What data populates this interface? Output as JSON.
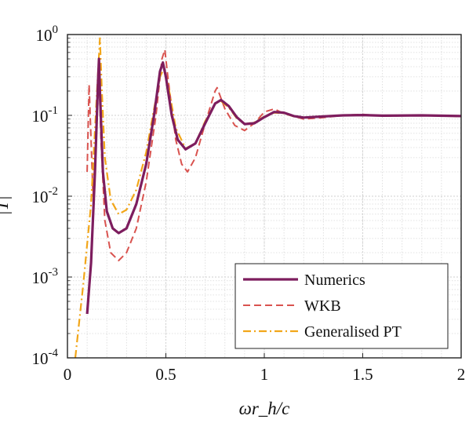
{
  "chart_data": {
    "type": "line",
    "title": "",
    "xlabel": "ωr_h/c",
    "ylabel": "|T|",
    "xlim": [
      0,
      2
    ],
    "ylim": [
      0.0001,
      1
    ],
    "yscale": "log",
    "grid": true,
    "legend_position": "bottom-right",
    "x_ticks": [
      "0",
      "0.5",
      "1",
      "1.5",
      "2"
    ],
    "y_ticks": [
      {
        "base": "10",
        "exp": "0"
      },
      {
        "base": "10",
        "exp": "-1"
      },
      {
        "base": "10",
        "exp": "-2"
      },
      {
        "base": "10",
        "exp": "-3"
      },
      {
        "base": "10",
        "exp": "-4"
      }
    ],
    "series": [
      {
        "name": "Numerics",
        "color": "#7d1d5e",
        "style": "solid",
        "points": [
          [
            0.1,
            0.00035
          ],
          [
            0.12,
            0.0015
          ],
          [
            0.14,
            0.02
          ],
          [
            0.155,
            0.25
          ],
          [
            0.16,
            0.5
          ],
          [
            0.165,
            0.2
          ],
          [
            0.18,
            0.02
          ],
          [
            0.2,
            0.0065
          ],
          [
            0.23,
            0.004
          ],
          [
            0.26,
            0.0035
          ],
          [
            0.3,
            0.004
          ],
          [
            0.35,
            0.008
          ],
          [
            0.4,
            0.025
          ],
          [
            0.44,
            0.1
          ],
          [
            0.47,
            0.35
          ],
          [
            0.485,
            0.45
          ],
          [
            0.5,
            0.3
          ],
          [
            0.53,
            0.1
          ],
          [
            0.56,
            0.05
          ],
          [
            0.6,
            0.038
          ],
          [
            0.65,
            0.045
          ],
          [
            0.7,
            0.08
          ],
          [
            0.75,
            0.14
          ],
          [
            0.78,
            0.155
          ],
          [
            0.82,
            0.13
          ],
          [
            0.86,
            0.095
          ],
          [
            0.9,
            0.078
          ],
          [
            0.95,
            0.08
          ],
          [
            1.0,
            0.095
          ],
          [
            1.05,
            0.11
          ],
          [
            1.1,
            0.108
          ],
          [
            1.15,
            0.098
          ],
          [
            1.2,
            0.094
          ],
          [
            1.3,
            0.097
          ],
          [
            1.4,
            0.1
          ],
          [
            1.5,
            0.101
          ],
          [
            1.6,
            0.099
          ],
          [
            1.8,
            0.1
          ],
          [
            2.0,
            0.098
          ]
        ]
      },
      {
        "name": "WKB",
        "color": "#d9534f",
        "style": "dashed",
        "points": [
          [
            0.1,
            0.02
          ],
          [
            0.11,
            0.24
          ],
          [
            0.12,
            0.05
          ],
          [
            0.13,
            0.01
          ],
          [
            0.15,
            0.08
          ],
          [
            0.16,
            0.35
          ],
          [
            0.17,
            0.05
          ],
          [
            0.19,
            0.005
          ],
          [
            0.22,
            0.002
          ],
          [
            0.26,
            0.0016
          ],
          [
            0.3,
            0.002
          ],
          [
            0.35,
            0.004
          ],
          [
            0.4,
            0.015
          ],
          [
            0.45,
            0.1
          ],
          [
            0.48,
            0.5
          ],
          [
            0.495,
            0.65
          ],
          [
            0.51,
            0.3
          ],
          [
            0.55,
            0.05
          ],
          [
            0.58,
            0.025
          ],
          [
            0.61,
            0.02
          ],
          [
            0.65,
            0.03
          ],
          [
            0.7,
            0.08
          ],
          [
            0.75,
            0.2
          ],
          [
            0.76,
            0.22
          ],
          [
            0.8,
            0.12
          ],
          [
            0.85,
            0.075
          ],
          [
            0.9,
            0.065
          ],
          [
            0.95,
            0.08
          ],
          [
            1.0,
            0.11
          ],
          [
            1.05,
            0.12
          ],
          [
            1.1,
            0.105
          ],
          [
            1.2,
            0.09
          ],
          [
            1.3,
            0.094
          ],
          [
            1.4,
            0.1
          ],
          [
            1.5,
            0.103
          ],
          [
            1.6,
            0.098
          ],
          [
            1.8,
            0.1
          ],
          [
            2.0,
            0.097
          ]
        ]
      },
      {
        "name": "Generalised PT",
        "color": "#f2a619",
        "style": "dashdot",
        "points": [
          [
            0.04,
            0.0001
          ],
          [
            0.08,
            0.0008
          ],
          [
            0.12,
            0.008
          ],
          [
            0.15,
            0.2
          ],
          [
            0.165,
            0.9
          ],
          [
            0.175,
            0.2
          ],
          [
            0.19,
            0.03
          ],
          [
            0.22,
            0.009
          ],
          [
            0.26,
            0.006
          ],
          [
            0.3,
            0.0068
          ],
          [
            0.35,
            0.012
          ],
          [
            0.4,
            0.035
          ],
          [
            0.44,
            0.12
          ],
          [
            0.47,
            0.3
          ],
          [
            0.49,
            0.38
          ],
          [
            0.51,
            0.25
          ],
          [
            0.55,
            0.07
          ],
          [
            0.6,
            0.039
          ],
          [
            0.65,
            0.045
          ],
          [
            0.7,
            0.085
          ],
          [
            0.75,
            0.14
          ],
          [
            0.78,
            0.15
          ],
          [
            0.82,
            0.125
          ],
          [
            0.86,
            0.092
          ],
          [
            0.9,
            0.078
          ],
          [
            0.95,
            0.082
          ],
          [
            1.0,
            0.097
          ],
          [
            1.05,
            0.108
          ],
          [
            1.1,
            0.106
          ],
          [
            1.15,
            0.097
          ],
          [
            1.2,
            0.094
          ],
          [
            1.3,
            0.097
          ],
          [
            1.4,
            0.1
          ],
          [
            1.5,
            0.101
          ],
          [
            1.6,
            0.099
          ],
          [
            1.8,
            0.1
          ],
          [
            2.0,
            0.097
          ]
        ]
      }
    ]
  }
}
